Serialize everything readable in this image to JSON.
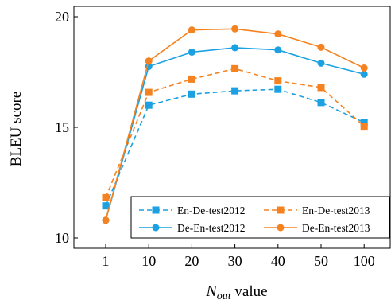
{
  "chart_data": {
    "type": "line",
    "categories": [
      "1",
      "10",
      "20",
      "30",
      "40",
      "50",
      "100"
    ],
    "ylabel": "BLEU score",
    "xlabel": {
      "symbol": "N",
      "subscript": "out",
      "suffix": " value"
    },
    "ylim": [
      10,
      20
    ],
    "y_ticks": [
      "10",
      "15",
      "20"
    ],
    "grid": false,
    "legend_position": "bottom-right",
    "series": [
      {
        "name": "En-De-test2012",
        "color": "#1ba1e2",
        "line_style": "dashed",
        "marker": "square",
        "values": [
          11.45,
          16.0,
          16.5,
          16.65,
          16.72,
          16.12,
          15.22
        ]
      },
      {
        "name": "En-De-test2013",
        "color": "#f58220",
        "line_style": "dashed",
        "marker": "square",
        "values": [
          11.82,
          16.58,
          17.18,
          17.65,
          17.1,
          16.8,
          15.05
        ]
      },
      {
        "name": "De-En-test2012",
        "color": "#1ba1e2",
        "line_style": "solid",
        "marker": "circle",
        "values": [
          10.8,
          17.75,
          18.4,
          18.6,
          18.5,
          17.9,
          17.4
        ]
      },
      {
        "name": "De-En-test2013",
        "color": "#f58220",
        "line_style": "solid",
        "marker": "circle",
        "values": [
          10.8,
          18.0,
          19.4,
          19.45,
          19.22,
          18.62,
          17.68
        ]
      }
    ]
  }
}
